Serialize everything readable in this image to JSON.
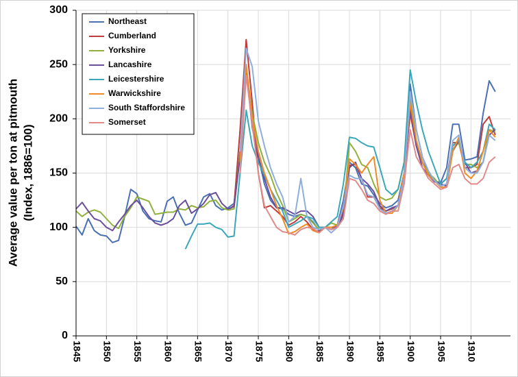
{
  "chart_data": {
    "type": "line",
    "ylabel": [
      "Average value per ton at pitmouth",
      "(Index, 1886=100)"
    ],
    "x": [
      1845,
      1846,
      1847,
      1848,
      1849,
      1850,
      1851,
      1852,
      1853,
      1854,
      1855,
      1856,
      1857,
      1858,
      1859,
      1860,
      1861,
      1862,
      1863,
      1864,
      1865,
      1866,
      1867,
      1868,
      1869,
      1870,
      1871,
      1872,
      1873,
      1874,
      1875,
      1876,
      1877,
      1878,
      1879,
      1880,
      1881,
      1882,
      1883,
      1884,
      1885,
      1886,
      1887,
      1888,
      1889,
      1890,
      1891,
      1892,
      1893,
      1894,
      1895,
      1896,
      1897,
      1898,
      1899,
      1900,
      1901,
      1902,
      1903,
      1904,
      1905,
      1906,
      1907,
      1908,
      1909,
      1910,
      1911,
      1912,
      1913,
      1914
    ],
    "xlim": [
      1845,
      1916.5
    ],
    "xticks": [
      1845,
      1850,
      1855,
      1860,
      1865,
      1870,
      1875,
      1880,
      1885,
      1890,
      1895,
      1900,
      1905,
      1910
    ],
    "ylim": [
      0,
      300
    ],
    "yticks": [
      0,
      50,
      100,
      150,
      200,
      250,
      300
    ],
    "grid": true,
    "legend": "top-left",
    "series": [
      {
        "name": "Northeast",
        "color": "#4a6fb5",
        "values": [
          101,
          93,
          108,
          97,
          93,
          92,
          86,
          88,
          110,
          135,
          131,
          115,
          108,
          106,
          105,
          124,
          128,
          113,
          102,
          104,
          116,
          128,
          131,
          120,
          116,
          118,
          122,
          170,
          245,
          200,
          165,
          140,
          125,
          118,
          117,
          112,
          110,
          112,
          110,
          105,
          97,
          100,
          98,
          102,
          125,
          160,
          155,
          140,
          138,
          130,
          122,
          118,
          120,
          125,
          150,
          232,
          190,
          165,
          150,
          143,
          141,
          155,
          195,
          195,
          162,
          163,
          165,
          205,
          235,
          225
        ]
      },
      {
        "name": "Cumberland",
        "color": "#be3b3b",
        "values": [
          null,
          null,
          null,
          null,
          null,
          null,
          null,
          null,
          null,
          null,
          null,
          null,
          null,
          null,
          null,
          null,
          null,
          null,
          null,
          null,
          null,
          null,
          null,
          null,
          null,
          116,
          120,
          190,
          273,
          215,
          150,
          118,
          120,
          115,
          110,
          102,
          105,
          110,
          105,
          98,
          96,
          100,
          98,
          100,
          115,
          157,
          158,
          145,
          128,
          128,
          118,
          115,
          117,
          120,
          150,
          205,
          175,
          160,
          148,
          142,
          140,
          145,
          178,
          178,
          155,
          155,
          158,
          195,
          202,
          185
        ]
      },
      {
        "name": "Yorkshire",
        "color": "#8fb03c",
        "values": [
          115,
          110,
          114,
          116,
          114,
          108,
          102,
          99,
          110,
          118,
          128,
          126,
          124,
          112,
          113,
          114,
          114,
          117,
          116,
          120,
          118,
          119,
          124,
          125,
          118,
          116,
          117,
          170,
          248,
          205,
          178,
          160,
          148,
          132,
          120,
          105,
          108,
          112,
          110,
          104,
          98,
          100,
          104,
          102,
          110,
          178,
          170,
          158,
          155,
          140,
          128,
          125,
          127,
          135,
          160,
          220,
          180,
          160,
          150,
          145,
          138,
          140,
          172,
          178,
          158,
          158,
          155,
          160,
          190,
          188
        ]
      },
      {
        "name": "Lancashire",
        "color": "#6a4e9c",
        "values": [
          117,
          123,
          115,
          108,
          106,
          100,
          97,
          105,
          112,
          120,
          125,
          118,
          110,
          104,
          102,
          104,
          108,
          120,
          125,
          113,
          117,
          122,
          130,
          132,
          122,
          117,
          119,
          165,
          245,
          192,
          165,
          145,
          128,
          118,
          118,
          115,
          112,
          115,
          115,
          110,
          100,
          100,
          100,
          100,
          112,
          155,
          160,
          145,
          140,
          133,
          120,
          115,
          118,
          120,
          145,
          210,
          175,
          155,
          148,
          142,
          140,
          138,
          170,
          180,
          160,
          150,
          152,
          160,
          185,
          190
        ]
      },
      {
        "name": "Leicestershire",
        "color": "#3aa6b9",
        "values": [
          null,
          null,
          null,
          null,
          null,
          null,
          null,
          null,
          null,
          null,
          null,
          null,
          null,
          null,
          null,
          null,
          null,
          null,
          80,
          92,
          103,
          103,
          104,
          100,
          98,
          91,
          92,
          150,
          208,
          175,
          160,
          148,
          135,
          125,
          115,
          100,
          103,
          106,
          110,
          108,
          100,
          100,
          105,
          110,
          140,
          183,
          182,
          178,
          175,
          174,
          155,
          135,
          130,
          135,
          160,
          245,
          215,
          190,
          170,
          155,
          140,
          145,
          175,
          180,
          160,
          155,
          160,
          170,
          195,
          190
        ]
      },
      {
        "name": "Warwickshire",
        "color": "#f08a24",
        "values": [
          null,
          null,
          null,
          null,
          null,
          null,
          null,
          null,
          null,
          null,
          null,
          null,
          null,
          null,
          null,
          null,
          null,
          null,
          null,
          null,
          null,
          null,
          null,
          null,
          null,
          null,
          null,
          160,
          250,
          200,
          170,
          150,
          135,
          120,
          108,
          94,
          96,
          100,
          103,
          97,
          95,
          100,
          100,
          102,
          118,
          163,
          158,
          150,
          158,
          165,
          125,
          113,
          113,
          120,
          150,
          215,
          180,
          160,
          148,
          143,
          137,
          137,
          170,
          183,
          150,
          145,
          152,
          170,
          190,
          183
        ]
      },
      {
        "name": "South Staffordshire",
        "color": "#8eaedc",
        "values": [
          null,
          null,
          null,
          null,
          null,
          null,
          null,
          null,
          null,
          null,
          null,
          null,
          null,
          null,
          null,
          null,
          null,
          null,
          null,
          null,
          null,
          null,
          null,
          null,
          null,
          null,
          null,
          170,
          265,
          248,
          198,
          175,
          155,
          140,
          128,
          105,
          110,
          145,
          110,
          100,
          98,
          100,
          95,
          100,
          120,
          148,
          145,
          145,
          130,
          128,
          117,
          113,
          115,
          120,
          145,
          225,
          190,
          165,
          152,
          143,
          138,
          140,
          180,
          185,
          155,
          150,
          150,
          160,
          185,
          180
        ]
      },
      {
        "name": "Somerset",
        "color": "#e08a8a",
        "values": [
          null,
          null,
          null,
          null,
          null,
          null,
          null,
          null,
          null,
          null,
          null,
          null,
          null,
          null,
          null,
          null,
          null,
          null,
          null,
          null,
          null,
          null,
          null,
          null,
          null,
          null,
          null,
          150,
          240,
          195,
          150,
          120,
          110,
          100,
          96,
          95,
          93,
          98,
          100,
          99,
          95,
          100,
          98,
          100,
          108,
          145,
          143,
          135,
          125,
          122,
          115,
          112,
          115,
          115,
          140,
          190,
          165,
          155,
          145,
          140,
          135,
          137,
          155,
          158,
          145,
          140,
          140,
          145,
          160,
          165
        ]
      }
    ]
  }
}
